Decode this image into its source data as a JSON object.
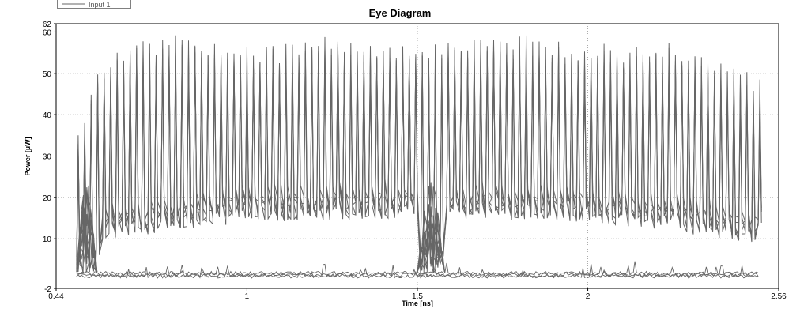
{
  "chart_data": {
    "type": "line",
    "title": "Eye Diagram",
    "xlabel": "Time [ns]",
    "ylabel": "Power [µW]",
    "xlim": [
      0.44,
      2.56
    ],
    "ylim": [
      -2,
      62
    ],
    "x_ticks": [
      {
        "value": 0.44,
        "label": "0.44"
      },
      {
        "value": 1,
        "label": "1"
      },
      {
        "value": 1.5,
        "label": "1.5"
      },
      {
        "value": 2,
        "label": "2"
      },
      {
        "value": 2.56,
        "label": "2.56"
      }
    ],
    "y_ticks": [
      {
        "value": -2,
        "label": "-2"
      },
      {
        "value": 10,
        "label": "10"
      },
      {
        "value": 20,
        "label": "20"
      },
      {
        "value": 30,
        "label": "30"
      },
      {
        "value": 40,
        "label": "40"
      },
      {
        "value": 50,
        "label": "50"
      },
      {
        "value": 60,
        "label": "60"
      },
      {
        "value": 62,
        "label": "62"
      }
    ],
    "grid": true,
    "legend": {
      "placement": "top-left",
      "entries": [
        "Input 1"
      ]
    },
    "series": [
      {
        "name": "Input 1",
        "color": "#666666",
        "x_start": 0.5,
        "x_end": 2.5,
        "cycles": 105,
        "peak_envelope": [
          [
            0.5,
            35
          ],
          [
            0.55,
            52
          ],
          [
            0.65,
            58
          ],
          [
            0.75,
            60
          ],
          [
            1.0,
            57
          ],
          [
            1.25,
            59
          ],
          [
            1.5,
            58
          ],
          [
            1.75,
            60
          ],
          [
            2.0,
            57
          ],
          [
            2.25,
            58
          ],
          [
            2.5,
            50
          ]
        ],
        "trough_envelope": [
          [
            0.5,
            8
          ],
          [
            0.6,
            10
          ],
          [
            1.0,
            14
          ],
          [
            1.5,
            15
          ],
          [
            2.0,
            14
          ],
          [
            2.5,
            9
          ]
        ],
        "baseline_level": 0.5,
        "transition_regions": [
          [
            0.5,
            0.56
          ],
          [
            1.5,
            1.58
          ]
        ]
      }
    ]
  },
  "legend_label": "Input 1",
  "colors": {
    "trace": "#666666",
    "grid": "#999999",
    "axis": "#000000"
  }
}
